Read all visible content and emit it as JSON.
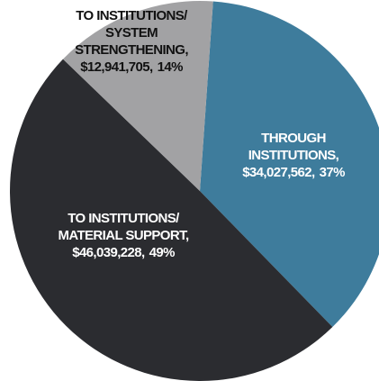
{
  "chart_data": {
    "type": "pie",
    "categories": [
      [
        "THROUGH",
        "INSTITUTIONS,"
      ],
      [
        "TO INSTITUTIONS/",
        "MATERIAL SUPPORT,"
      ],
      [
        "TO INSTITUTIONS/",
        "SYSTEM",
        "STRENGTHENING,"
      ]
    ],
    "values": [
      34027562,
      46039228,
      12941705
    ],
    "value_labels": [
      "$34,027,562,",
      "$46,039,228,",
      "$12,941,705,"
    ],
    "percent_labels": [
      "37%",
      "49%",
      "14%"
    ],
    "colors": [
      "#3e7c9c",
      "#2b2c30",
      "#a2a2a4"
    ],
    "label_colors": [
      "#ffffff",
      "#ffffff",
      "#111111"
    ]
  }
}
